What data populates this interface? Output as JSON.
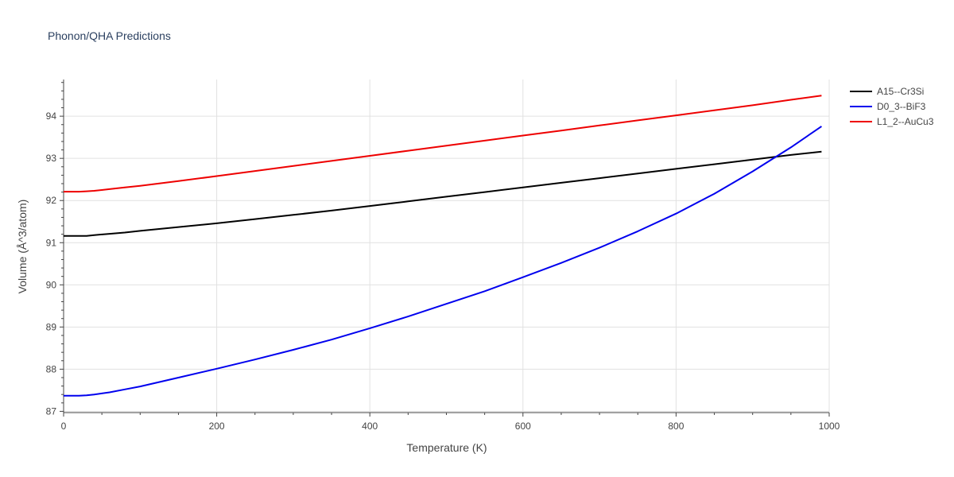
{
  "chart_data": {
    "type": "line",
    "title": "Phonon/QHA Predictions",
    "xlabel": "Temperature (K)",
    "ylabel": "Volume (Å^3/atom)",
    "xlim": [
      0,
      1000
    ],
    "ylim": [
      86.97,
      94.87
    ],
    "xticks": [
      0,
      200,
      400,
      600,
      800,
      1000
    ],
    "yticks": [
      87,
      88,
      89,
      90,
      91,
      92,
      93,
      94
    ],
    "grid": true,
    "legend_position": "top-right",
    "series": [
      {
        "name": "A15--Cr3Si",
        "color": "#000000",
        "x": [
          0,
          10,
          20,
          30,
          40,
          60,
          80,
          100,
          150,
          200,
          250,
          300,
          350,
          400,
          450,
          500,
          550,
          600,
          650,
          700,
          750,
          800,
          850,
          900,
          950,
          990
        ],
        "y": [
          91.16,
          91.16,
          91.16,
          91.16,
          91.18,
          91.21,
          91.24,
          91.28,
          91.37,
          91.46,
          91.56,
          91.66,
          91.76,
          91.87,
          91.98,
          92.09,
          92.2,
          92.31,
          92.42,
          92.53,
          92.64,
          92.75,
          92.86,
          92.97,
          93.08,
          93.16
        ]
      },
      {
        "name": "D0_3--BiF3",
        "color": "#0000ee",
        "x": [
          0,
          10,
          20,
          30,
          40,
          60,
          80,
          100,
          150,
          200,
          250,
          300,
          350,
          400,
          450,
          500,
          550,
          600,
          650,
          700,
          750,
          800,
          850,
          900,
          950,
          990
        ],
        "y": [
          87.37,
          87.37,
          87.37,
          87.38,
          87.4,
          87.45,
          87.52,
          87.59,
          87.8,
          88.01,
          88.23,
          88.46,
          88.7,
          88.97,
          89.25,
          89.55,
          89.85,
          90.18,
          90.52,
          90.88,
          91.27,
          91.69,
          92.16,
          92.69,
          93.26,
          93.76
        ]
      },
      {
        "name": "L1_2--AuCu3",
        "color": "#ee0000",
        "x": [
          0,
          10,
          20,
          30,
          40,
          60,
          80,
          100,
          150,
          200,
          250,
          300,
          350,
          400,
          450,
          500,
          550,
          600,
          650,
          700,
          750,
          800,
          850,
          900,
          950,
          990
        ],
        "y": [
          92.21,
          92.21,
          92.21,
          92.22,
          92.23,
          92.27,
          92.31,
          92.35,
          92.46,
          92.58,
          92.7,
          92.82,
          92.94,
          93.06,
          93.18,
          93.3,
          93.42,
          93.54,
          93.66,
          93.78,
          93.9,
          94.02,
          94.14,
          94.26,
          94.39,
          94.49
        ]
      }
    ]
  }
}
